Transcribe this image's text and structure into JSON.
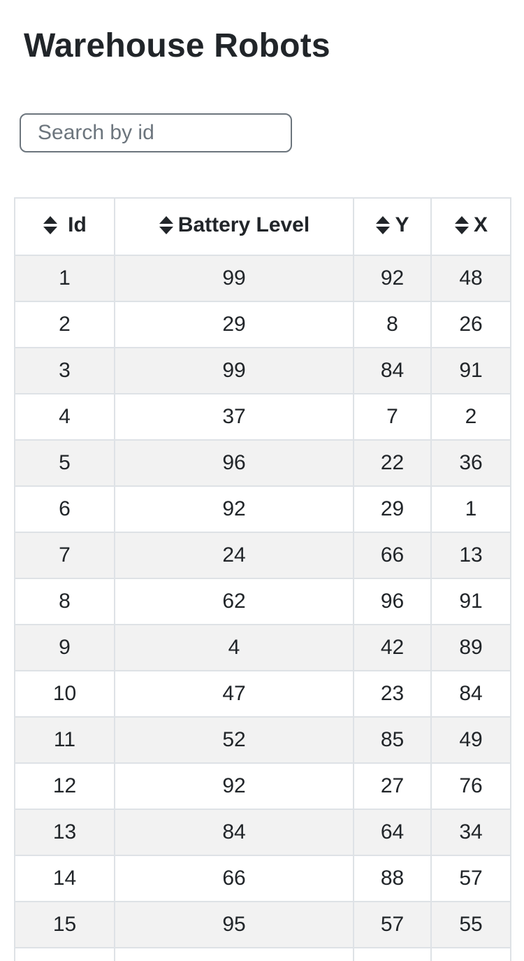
{
  "page": {
    "title": "Warehouse Robots"
  },
  "search": {
    "placeholder": "Search by id",
    "value": ""
  },
  "table": {
    "columns": [
      {
        "label": "Id",
        "sort_icon": "sort-updown-icon"
      },
      {
        "label": "Battery Level",
        "sort_icon": "sort-updown-icon"
      },
      {
        "label": "Y",
        "sort_icon": "sort-updown-icon"
      },
      {
        "label": "X",
        "sort_icon": "sort-updown-icon"
      }
    ],
    "rows": [
      [
        "1",
        "99",
        "92",
        "48"
      ],
      [
        "2",
        "29",
        "8",
        "26"
      ],
      [
        "3",
        "99",
        "84",
        "91"
      ],
      [
        "4",
        "37",
        "7",
        "2"
      ],
      [
        "5",
        "96",
        "22",
        "36"
      ],
      [
        "6",
        "92",
        "29",
        "1"
      ],
      [
        "7",
        "24",
        "66",
        "13"
      ],
      [
        "8",
        "62",
        "96",
        "91"
      ],
      [
        "9",
        "4",
        "42",
        "89"
      ],
      [
        "10",
        "47",
        "23",
        "84"
      ],
      [
        "11",
        "52",
        "85",
        "49"
      ],
      [
        "12",
        "92",
        "27",
        "76"
      ],
      [
        "13",
        "84",
        "64",
        "34"
      ],
      [
        "14",
        "66",
        "88",
        "57"
      ],
      [
        "15",
        "95",
        "57",
        "55"
      ],
      [
        "",
        "",
        "",
        ""
      ]
    ],
    "stripe_color": "#f2f2f2",
    "border_color": "#dee2e6"
  }
}
